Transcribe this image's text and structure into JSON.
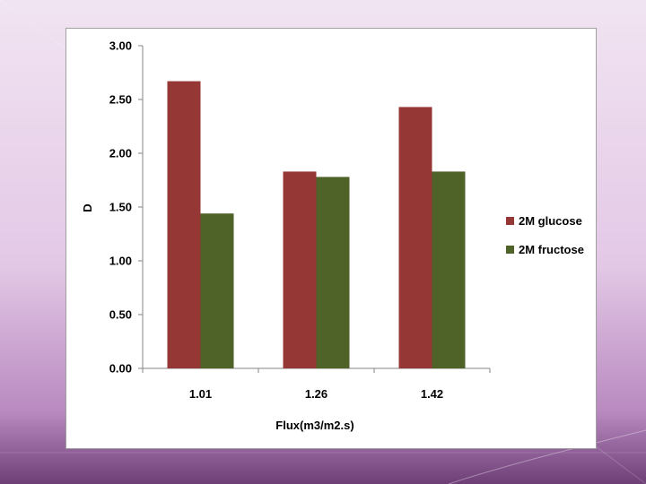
{
  "colors": {
    "glucose": "#953735",
    "fructose": "#4f6228"
  },
  "chart_data": {
    "type": "bar",
    "categories": [
      "1.01",
      "1.26",
      "1.42"
    ],
    "series": [
      {
        "name": "2M glucose",
        "values": [
          2.67,
          1.83,
          2.43
        ]
      },
      {
        "name": "2M fructose",
        "values": [
          1.44,
          1.78,
          1.83
        ]
      }
    ],
    "xlabel": "Flux(m3/m2.s)",
    "ylabel": "D",
    "ylim": [
      0,
      3
    ],
    "yticks": [
      "0.00",
      "0.50",
      "1.00",
      "1.50",
      "2.00",
      "2.50",
      "3.00"
    ],
    "grid": false,
    "legend": "right"
  }
}
